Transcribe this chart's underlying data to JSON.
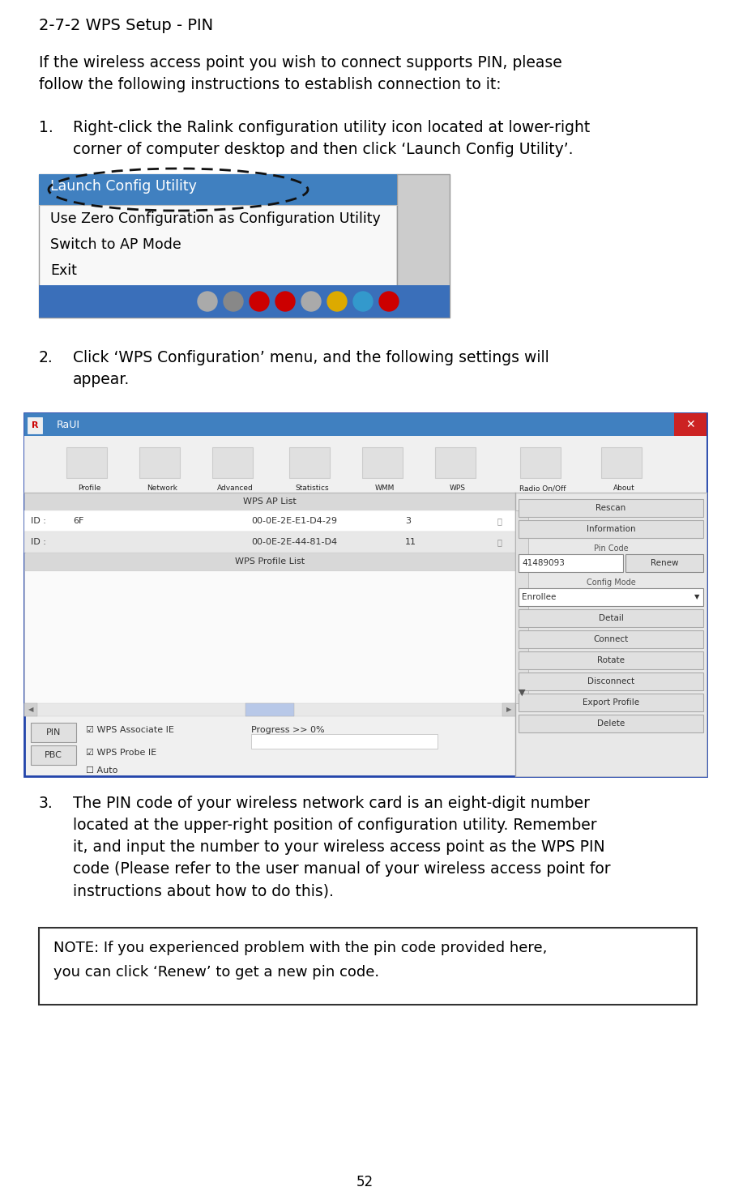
{
  "page_number": "52",
  "title": "2-7-2 WPS Setup - PIN",
  "intro_line1": "If the wireless access point you wish to connect supports PIN, please",
  "intro_line2": "follow the following instructions to establish connection to it:",
  "step1_line1": "Right-click the Ralink configuration utility icon located at lower-right",
  "step1_line2": "corner of computer desktop and then click ‘Launch Config Utility’.",
  "step2_line1": "Click ‘WPS Configuration’ menu, and the following settings will",
  "step2_line2": "appear.",
  "step3_line1": "The PIN code of your wireless network card is an eight-digit number",
  "step3_line2": "located at the upper-right position of configuration utility. Remember",
  "step3_line3": "it, and input the number to your wireless access point as the WPS PIN",
  "step3_line4": "code (Please refer to the user manual of your wireless access point for",
  "step3_line5": "instructions about how to do this).",
  "note_line1": "NOTE: If you experienced problem with the pin code provided here,",
  "note_line2": "you can click ‘Renew’ to get a new pin code.",
  "bg_color": "#ffffff",
  "text_color": "#000000",
  "menu_bg": "#4080c0",
  "menu_text_white": "#ffffff",
  "menu_text_black": "#000000",
  "menu_border_color": "#999999",
  "taskbar_color": "#3a6fba",
  "note_border": "#333333",
  "note_bg": "#ffffff",
  "menu_items": [
    "Launch Config Utility",
    "Use Zero Configuration as Configuration Utility",
    "Switch to AP Mode",
    "Exit"
  ],
  "raui_titlebar_color": "#4080c0",
  "raui_border_color": "#2244aa",
  "raui_close_color": "#cc2222",
  "raui_bg": "#f0f0f0",
  "raui_panel_bg": "#e8e8e8",
  "raui_white": "#ffffff",
  "raui_row1": "#ffffff",
  "raui_row2": "#e8e8e8",
  "raui_header_bg": "#d8d8d8",
  "raui_btn_bg": "#e0e0e0",
  "raui_scrollbar": "#b0b0b0"
}
